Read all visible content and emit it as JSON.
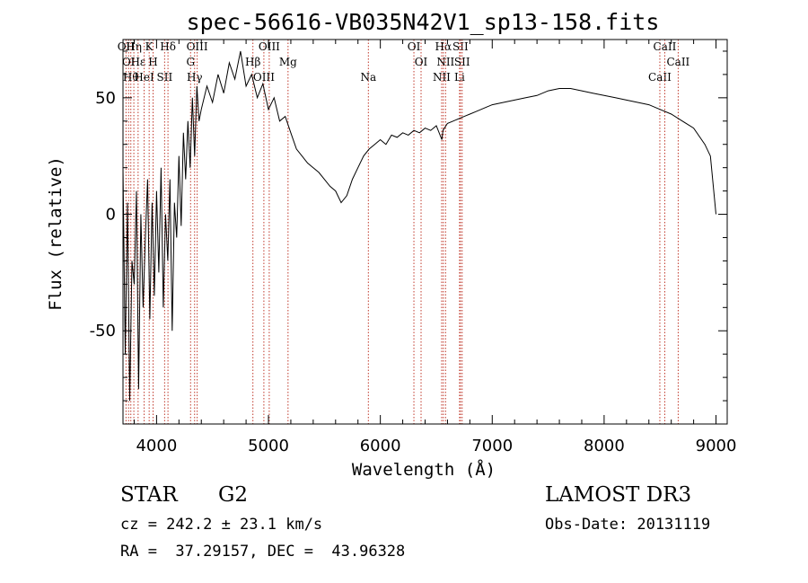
{
  "chart_data": {
    "type": "line",
    "title": "spec-56616-VB035N42V1_sp13-158.fits",
    "xlabel": "Wavelength (Å)",
    "ylabel": "Flux (relative)",
    "xlim": [
      3700,
      9100
    ],
    "ylim": [
      -90,
      75
    ],
    "xticks": [
      4000,
      5000,
      6000,
      7000,
      8000,
      9000
    ],
    "yticks": [
      -50,
      0,
      50
    ],
    "grid": false,
    "series": [
      {
        "name": "flux",
        "x": [
          3700,
          3720,
          3740,
          3760,
          3780,
          3800,
          3820,
          3840,
          3860,
          3880,
          3900,
          3920,
          3940,
          3960,
          3980,
          4000,
          4020,
          4040,
          4060,
          4080,
          4100,
          4120,
          4140,
          4160,
          4180,
          4200,
          4220,
          4240,
          4260,
          4280,
          4300,
          4320,
          4340,
          4360,
          4380,
          4400,
          4450,
          4500,
          4550,
          4600,
          4650,
          4700,
          4750,
          4800,
          4850,
          4900,
          4950,
          5000,
          5050,
          5100,
          5150,
          5200,
          5250,
          5300,
          5350,
          5400,
          5450,
          5500,
          5550,
          5600,
          5650,
          5700,
          5750,
          5800,
          5850,
          5900,
          5950,
          6000,
          6050,
          6100,
          6150,
          6200,
          6250,
          6300,
          6350,
          6400,
          6450,
          6500,
          6550,
          6560,
          6600,
          6650,
          6700,
          6750,
          6800,
          6850,
          6900,
          6950,
          7000,
          7100,
          7200,
          7300,
          7400,
          7500,
          7600,
          7700,
          7800,
          7900,
          8000,
          8100,
          8200,
          8300,
          8400,
          8500,
          8600,
          8700,
          8800,
          8900,
          8950,
          9000
        ],
        "y": [
          20,
          -60,
          5,
          -80,
          -20,
          -30,
          10,
          -75,
          0,
          -40,
          -10,
          15,
          -45,
          5,
          -35,
          10,
          -25,
          20,
          -40,
          0,
          -20,
          15,
          -50,
          5,
          -10,
          25,
          -5,
          35,
          15,
          40,
          20,
          50,
          25,
          55,
          40,
          45,
          55,
          48,
          60,
          52,
          65,
          58,
          70,
          55,
          60,
          50,
          56,
          45,
          50,
          40,
          42,
          35,
          28,
          25,
          22,
          20,
          18,
          15,
          12,
          10,
          5,
          8,
          15,
          20,
          25,
          28,
          30,
          32,
          30,
          34,
          33,
          35,
          34,
          36,
          35,
          37,
          36,
          38,
          32,
          36,
          39,
          40,
          41,
          42,
          43,
          44,
          45,
          46,
          47,
          48,
          49,
          50,
          51,
          53,
          54,
          54,
          53,
          52,
          51,
          50,
          49,
          48,
          47,
          45,
          43,
          40,
          37,
          30,
          25,
          0
        ]
      }
    ],
    "line_markers": [
      {
        "wl": 3727,
        "label": "OII"
      },
      {
        "wl": 3750,
        "label": "OI"
      },
      {
        "wl": 3770,
        "label": "Hθ"
      },
      {
        "wl": 3797,
        "label": "Hη"
      },
      {
        "wl": 3835,
        "label": "Hε"
      },
      {
        "wl": 3889,
        "label": "HeI"
      },
      {
        "wl": 3934,
        "label": "K"
      },
      {
        "wl": 3969,
        "label": "H"
      },
      {
        "wl": 4072,
        "label": "SII"
      },
      {
        "wl": 4102,
        "label": "Hδ"
      },
      {
        "wl": 4304,
        "label": "G"
      },
      {
        "wl": 4340,
        "label": "Hγ"
      },
      {
        "wl": 4363,
        "label": "OIII"
      },
      {
        "wl": 4861,
        "label": "Hβ"
      },
      {
        "wl": 4959,
        "label": "OIII"
      },
      {
        "wl": 5007,
        "label": "OIII"
      },
      {
        "wl": 5175,
        "label": "Mg"
      },
      {
        "wl": 5893,
        "label": "Na"
      },
      {
        "wl": 6300,
        "label": "OI"
      },
      {
        "wl": 6364,
        "label": "OI"
      },
      {
        "wl": 6548,
        "label": "NII"
      },
      {
        "wl": 6563,
        "label": "Hα"
      },
      {
        "wl": 6583,
        "label": "NII"
      },
      {
        "wl": 6708,
        "label": "Li"
      },
      {
        "wl": 6716,
        "label": "SII"
      },
      {
        "wl": 6731,
        "label": "SII"
      },
      {
        "wl": 8498,
        "label": "CaII"
      },
      {
        "wl": 8542,
        "label": "CaII"
      },
      {
        "wl": 8662,
        "label": "CaII"
      }
    ]
  },
  "info": {
    "object_class": "STAR",
    "subclass": "G2",
    "survey": "LAMOST DR3",
    "cz": "cz = 242.2 ± 23.1 km/s",
    "obs_date": "Obs-Date: 20131119",
    "coords": "RA =  37.29157, DEC =  43.96328"
  },
  "colors": {
    "spectrum": "#000000",
    "marker": "#c0392b",
    "axes": "#000000"
  }
}
